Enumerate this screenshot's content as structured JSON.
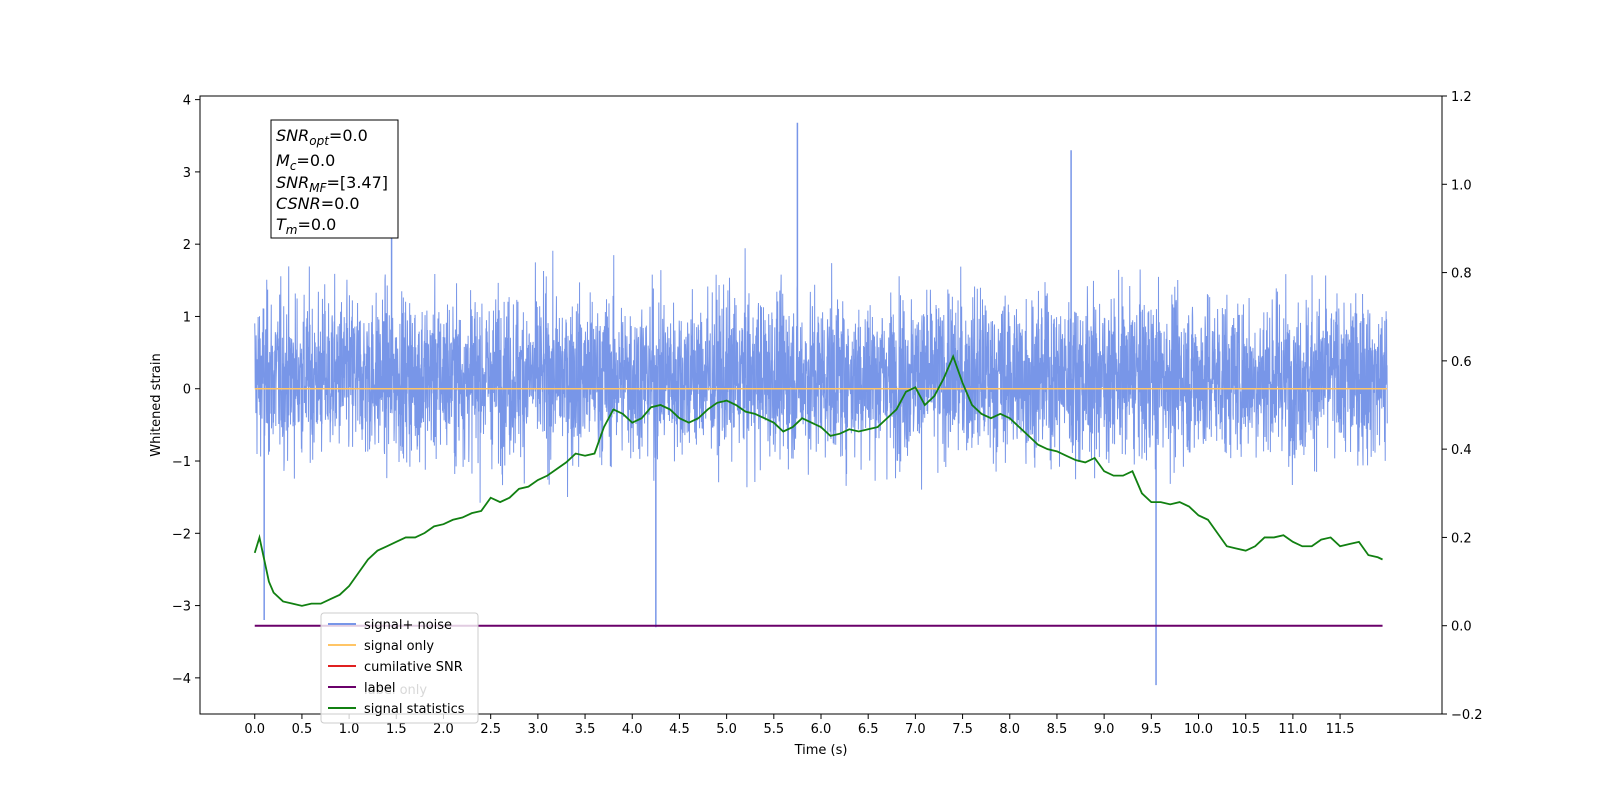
{
  "chart_data": {
    "type": "line",
    "xlabel": "Time (s)",
    "ylabel": "Whitened strain",
    "xlim": [
      -0.58,
      12.58
    ],
    "ylim": [
      -4.5,
      4.05
    ],
    "y2lim": [
      -0.2,
      1.2
    ],
    "x_ticks": [
      "0.0",
      "0.5",
      "1.0",
      "1.5",
      "2.0",
      "2.5",
      "3.0",
      "3.5",
      "4.0",
      "4.5",
      "5.0",
      "5.5",
      "6.0",
      "6.5",
      "7.0",
      "7.5",
      "8.0",
      "8.5",
      "9.0",
      "9.5",
      "10.0",
      "10.5",
      "11.0",
      "11.5"
    ],
    "y_ticks": [
      "4",
      "3",
      "2",
      "1",
      "0",
      "−1",
      "−2",
      "−3",
      "−4"
    ],
    "y2_ticks": [
      "1.2",
      "1.0",
      "0.8",
      "0.6",
      "0.4",
      "0.2",
      "0.0",
      "−0.2"
    ],
    "legend": {
      "placement": "lower-left",
      "entries": [
        {
          "label": "signal+ noise",
          "color": "#7896e8"
        },
        {
          "label": "signal only",
          "color": "#ffc566"
        },
        {
          "label": "cumilative SNR",
          "color": "#e02020"
        },
        {
          "label": "label",
          "color": "#6a006a"
        },
        {
          "label": "signal statistics",
          "color": "#118011"
        }
      ],
      "hidden_labels": [
        "label only"
      ]
    },
    "annotation": {
      "snr_opt": {
        "sym": "SNR",
        "sub": "opt",
        "val": "=0.0"
      },
      "mc": {
        "sym": "M",
        "sub": "c",
        "val": "=0.0"
      },
      "snr_mf": {
        "sym": "SNR",
        "sub": "MF",
        "val": "=[3.47]"
      },
      "csnr": {
        "sym": "CSNR",
        "val": "=0.0"
      },
      "tm": {
        "sym": "T",
        "sub": "m",
        "val": "=0.0"
      }
    },
    "series": [
      {
        "name": "signal+ noise",
        "color": "#7896e8",
        "envelope": {
          "x_range": [
            0.0,
            12.0
          ],
          "typical_high": 1.7,
          "typical_low": -1.4,
          "max": 3.68,
          "min": -4.1
        },
        "spikes": [
          [
            1.45,
            3.25
          ],
          [
            5.75,
            3.68
          ],
          [
            4.25,
            -3.3
          ],
          [
            9.55,
            -4.1
          ],
          [
            0.1,
            -3.2
          ],
          [
            8.65,
            3.3
          ]
        ]
      },
      {
        "name": "signal only",
        "color": "#ffc566",
        "x": [
          0.0,
          12.0
        ],
        "y": [
          0.0,
          0.0
        ]
      },
      {
        "name": "label",
        "color": "#6a006a",
        "axis": "right",
        "x": [
          0.0,
          11.95
        ],
        "y": [
          0.0,
          0.0
        ]
      },
      {
        "name": "signal statistics",
        "color": "#118011",
        "axis": "right",
        "x": [
          0.0,
          0.05,
          0.1,
          0.15,
          0.2,
          0.3,
          0.4,
          0.5,
          0.6,
          0.7,
          0.8,
          0.9,
          1.0,
          1.1,
          1.2,
          1.3,
          1.4,
          1.5,
          1.6,
          1.7,
          1.8,
          1.9,
          2.0,
          2.1,
          2.2,
          2.3,
          2.4,
          2.5,
          2.6,
          2.7,
          2.8,
          2.9,
          3.0,
          3.1,
          3.2,
          3.3,
          3.4,
          3.5,
          3.6,
          3.7,
          3.8,
          3.9,
          4.0,
          4.1,
          4.2,
          4.3,
          4.4,
          4.5,
          4.6,
          4.7,
          4.8,
          4.9,
          5.0,
          5.1,
          5.2,
          5.3,
          5.4,
          5.5,
          5.6,
          5.7,
          5.8,
          5.9,
          6.0,
          6.1,
          6.2,
          6.3,
          6.4,
          6.5,
          6.6,
          6.7,
          6.8,
          6.9,
          7.0,
          7.1,
          7.2,
          7.3,
          7.4,
          7.5,
          7.6,
          7.7,
          7.8,
          7.9,
          8.0,
          8.1,
          8.2,
          8.3,
          8.4,
          8.5,
          8.6,
          8.7,
          8.8,
          8.9,
          9.0,
          9.1,
          9.2,
          9.3,
          9.4,
          9.5,
          9.6,
          9.7,
          9.8,
          9.9,
          10.0,
          10.1,
          10.2,
          10.3,
          10.4,
          10.5,
          10.6,
          10.7,
          10.8,
          10.9,
          11.0,
          11.1,
          11.2,
          11.3,
          11.4,
          11.5,
          11.6,
          11.7,
          11.8,
          11.9,
          11.95
        ],
        "y": [
          0.165,
          0.2,
          0.15,
          0.1,
          0.075,
          0.055,
          0.05,
          0.045,
          0.05,
          0.05,
          0.06,
          0.07,
          0.09,
          0.12,
          0.15,
          0.17,
          0.18,
          0.19,
          0.2,
          0.2,
          0.21,
          0.225,
          0.23,
          0.24,
          0.245,
          0.255,
          0.26,
          0.29,
          0.28,
          0.29,
          0.31,
          0.315,
          0.33,
          0.34,
          0.355,
          0.37,
          0.39,
          0.385,
          0.39,
          0.45,
          0.49,
          0.48,
          0.46,
          0.47,
          0.495,
          0.5,
          0.49,
          0.47,
          0.46,
          0.47,
          0.49,
          0.505,
          0.51,
          0.5,
          0.485,
          0.48,
          0.47,
          0.46,
          0.44,
          0.45,
          0.47,
          0.46,
          0.45,
          0.43,
          0.435,
          0.445,
          0.44,
          0.445,
          0.45,
          0.47,
          0.49,
          0.53,
          0.54,
          0.5,
          0.52,
          0.56,
          0.61,
          0.55,
          0.5,
          0.48,
          0.47,
          0.48,
          0.47,
          0.45,
          0.43,
          0.41,
          0.4,
          0.395,
          0.385,
          0.375,
          0.37,
          0.38,
          0.35,
          0.34,
          0.34,
          0.35,
          0.3,
          0.28,
          0.28,
          0.275,
          0.28,
          0.27,
          0.25,
          0.24,
          0.21,
          0.18,
          0.175,
          0.17,
          0.18,
          0.2,
          0.2,
          0.205,
          0.19,
          0.18,
          0.18,
          0.195,
          0.2,
          0.18,
          0.185,
          0.19,
          0.16,
          0.155,
          0.15
        ]
      }
    ]
  }
}
